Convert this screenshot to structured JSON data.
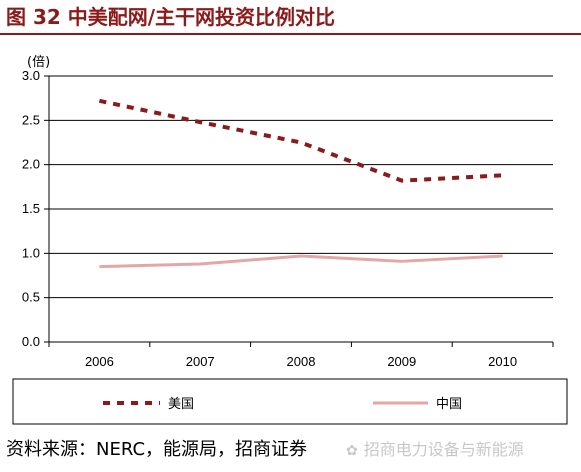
{
  "figure_title": "图 32 中美配网/主干网投资比例对比",
  "source_text": "资料来源：NERC，能源局，招商证券",
  "watermark": {
    "icon": "wechat-icon",
    "text": "招商电力设备与新能源"
  },
  "colors": {
    "title": "#8b1a1a",
    "us_series": "#8b1a1a",
    "china_series": "#e3a7a6",
    "grid": "#000000"
  },
  "chart_data": {
    "type": "line",
    "title": "",
    "unit_label": "(倍)",
    "xlabel": "",
    "ylabel": "",
    "categories": [
      "2006",
      "2007",
      "2008",
      "2009",
      "2010"
    ],
    "ylim": [
      0,
      3.0
    ],
    "yticks": [
      "0.0",
      "0.5",
      "1.0",
      "1.5",
      "2.0",
      "2.5",
      "3.0"
    ],
    "grid": "horizontal",
    "legend_position": "bottom",
    "series": [
      {
        "name": "美国",
        "style": "dashed",
        "values": [
          2.72,
          2.48,
          2.25,
          1.82,
          1.88
        ]
      },
      {
        "name": "中国",
        "style": "solid",
        "values": [
          0.85,
          0.88,
          0.97,
          0.91,
          0.97
        ]
      }
    ]
  }
}
